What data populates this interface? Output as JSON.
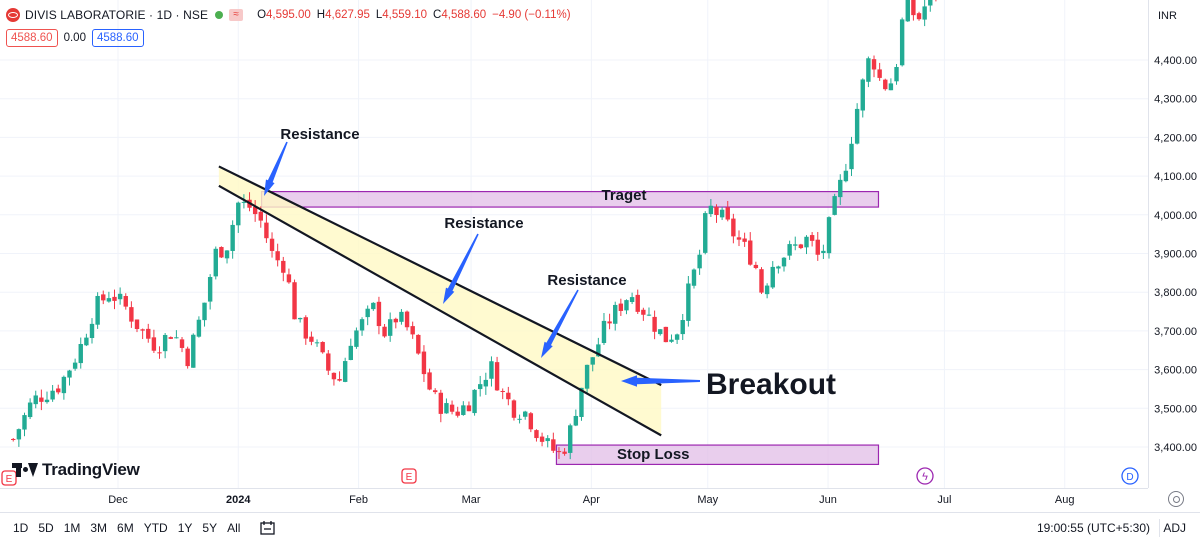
{
  "header": {
    "symbol_title": "DIVIS LABORATORIE · 1D · NSE",
    "ohlc": [
      {
        "key": "O",
        "value": "4,595.00"
      },
      {
        "key": "H",
        "value": "4,627.95"
      },
      {
        "key": "L",
        "value": "4,559.10"
      },
      {
        "key": "C",
        "value": "4,588.60"
      },
      {
        "key": "",
        "value": "−4.90 (−0.11%)"
      }
    ],
    "bid": "4588.60",
    "spread": "0.00",
    "ask": "4588.60"
  },
  "currency": "INR",
  "watermark": "TradingView",
  "toolbar": {
    "timeframes": [
      "1D",
      "5D",
      "1M",
      "3M",
      "6M",
      "YTD",
      "1Y",
      "5Y",
      "All"
    ],
    "clock": "19:00:55 (UTC+5:30)",
    "adj": "ADJ"
  },
  "colors": {
    "up": "#22ab94",
    "down": "#f23645",
    "zone_fill": "#e1bee7",
    "zone_border": "#9c27b0",
    "channel_fill": "#fff9c4",
    "arrow": "#2962ff"
  },
  "annotations": {
    "resistance_1": "Resistance",
    "resistance_2": "Resistance",
    "resistance_3": "Resistance",
    "breakout": "Breakout",
    "target": "Traget",
    "stop_loss": "Stop Loss"
  },
  "chart_data": {
    "type": "candlestick",
    "title": "DIVIS LABORATORIE · 1D · NSE",
    "y_ticks": [
      3400,
      3500,
      3600,
      3700,
      3800,
      3900,
      4000,
      4100,
      4200,
      4300,
      4400
    ],
    "y_tick_labels": [
      "3,400.00",
      "3,500.00",
      "3,600.00",
      "3,700.00",
      "3,800.00",
      "3,900.00",
      "4,000.00",
      "4,100.00",
      "4,200.00",
      "4,300.00",
      "4,400.00"
    ],
    "x_ticks": [
      {
        "label": "Dec",
        "day": 0
      },
      {
        "label": "2024",
        "day": 31
      },
      {
        "label": "Feb",
        "day": 62
      },
      {
        "label": "Mar",
        "day": 91
      },
      {
        "label": "Apr",
        "day": 122
      },
      {
        "label": "May",
        "day": 152
      },
      {
        "label": "Jun",
        "day": 183
      },
      {
        "label": "Jul",
        "day": 213
      },
      {
        "label": "Aug",
        "day": 244
      }
    ],
    "ohlc_path": [
      [
        -27,
        3420
      ],
      [
        -22,
        3520
      ],
      [
        -15,
        3560
      ],
      [
        -10,
        3650
      ],
      [
        -6,
        3760
      ],
      [
        -2,
        3800
      ],
      [
        2,
        3760
      ],
      [
        6,
        3700
      ],
      [
        10,
        3660
      ],
      [
        14,
        3700
      ],
      [
        18,
        3630
      ],
      [
        22,
        3760
      ],
      [
        25,
        3900
      ],
      [
        28,
        3920
      ],
      [
        31,
        4030
      ],
      [
        34,
        4020
      ],
      [
        37,
        3980
      ],
      [
        40,
        3890
      ],
      [
        43,
        3870
      ],
      [
        46,
        3720
      ],
      [
        50,
        3680
      ],
      [
        54,
        3600
      ],
      [
        57,
        3570
      ],
      [
        60,
        3680
      ],
      [
        63,
        3720
      ],
      [
        66,
        3760
      ],
      [
        69,
        3690
      ],
      [
        72,
        3740
      ],
      [
        75,
        3700
      ],
      [
        78,
        3620
      ],
      [
        81,
        3530
      ],
      [
        84,
        3500
      ],
      [
        87,
        3490
      ],
      [
        90,
        3510
      ],
      [
        93,
        3560
      ],
      [
        96,
        3610
      ],
      [
        99,
        3540
      ],
      [
        102,
        3500
      ],
      [
        105,
        3490
      ],
      [
        108,
        3440
      ],
      [
        111,
        3400
      ],
      [
        114,
        3380
      ],
      [
        116,
        3420
      ],
      [
        118,
        3500
      ],
      [
        120,
        3580
      ],
      [
        123,
        3650
      ],
      [
        126,
        3720
      ],
      [
        129,
        3760
      ],
      [
        132,
        3800
      ],
      [
        135,
        3760
      ],
      [
        138,
        3720
      ],
      [
        141,
        3680
      ],
      [
        144,
        3700
      ],
      [
        147,
        3800
      ],
      [
        150,
        3900
      ],
      [
        152,
        4020
      ],
      [
        155,
        4000
      ],
      [
        158,
        3960
      ],
      [
        161,
        3920
      ],
      [
        164,
        3880
      ],
      [
        166,
        3800
      ],
      [
        169,
        3880
      ],
      [
        172,
        3900
      ],
      [
        175,
        3920
      ],
      [
        178,
        3940
      ],
      [
        181,
        3880
      ],
      [
        184,
        4000
      ],
      [
        186,
        4070
      ],
      [
        188,
        4150
      ],
      [
        191,
        4300
      ],
      [
        194,
        4420
      ],
      [
        197,
        4330
      ],
      [
        200,
        4350
      ],
      [
        203,
        4560
      ],
      [
        206,
        4500
      ],
      [
        209,
        4560
      ],
      [
        212,
        4600
      ]
    ],
    "zones": [
      {
        "name": "Traget",
        "day_start": 37,
        "day_end": 196,
        "low": 4020,
        "high": 4060
      },
      {
        "name": "Stop Loss",
        "day_start": 113,
        "day_end": 196,
        "low": 3355,
        "high": 3405
      }
    ],
    "channel": {
      "upper": [
        [
          26,
          4125
        ],
        [
          140,
          3560
        ]
      ],
      "lower": [
        [
          26,
          4075
        ],
        [
          140,
          3430
        ]
      ]
    },
    "xlabel": "",
    "ylabel": ""
  }
}
